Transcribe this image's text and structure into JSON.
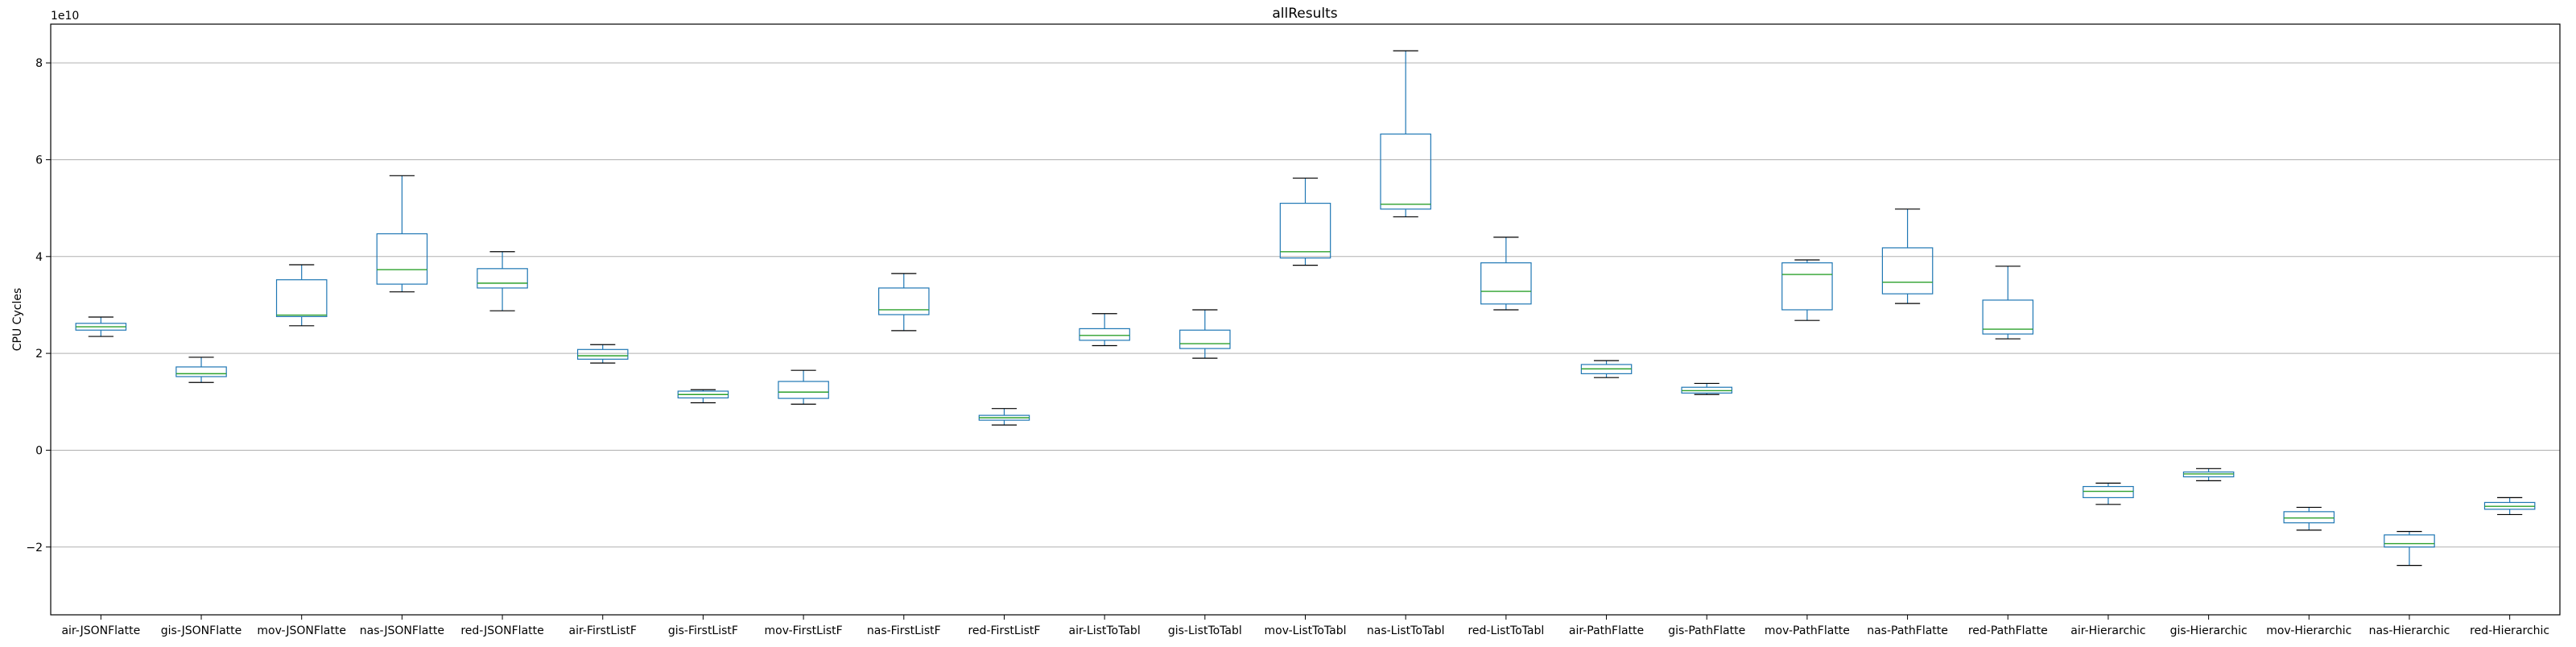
{
  "chart_data": {
    "type": "box",
    "title": "allResults",
    "xlabel": "",
    "ylabel": "CPU Cycles",
    "y_offset_text": "1e10",
    "y_scale": 10000000000,
    "ylim": [
      -3.4,
      8.8
    ],
    "yticks": [
      -2,
      0,
      2,
      4,
      6,
      8
    ],
    "y_tick_labels": [
      "−2",
      "0",
      "2",
      "4",
      "6",
      "8"
    ],
    "grid": "horizontal",
    "colors": {
      "box": "#1f77b4",
      "median": "#2ca02c",
      "whisker": "#1f77b4",
      "cap": "#000000",
      "grid": "#b0b0b0"
    },
    "categories": [
      "air-JSONFlatte",
      "gis-JSONFlatte",
      "mov-JSONFlatte",
      "nas-JSONFlatte",
      "red-JSONFlatte",
      "air-FirstListF",
      "gis-FirstListF",
      "mov-FirstListF",
      "nas-FirstListF",
      "red-FirstListF",
      "air-ListToTabl",
      "gis-ListToTabl",
      "mov-ListToTabl",
      "nas-ListToTabl",
      "red-ListToTabl",
      "air-PathFlatte",
      "gis-PathFlatte",
      "mov-PathFlatte",
      "nas-PathFlatte",
      "red-PathFlatte",
      "air-Hierarchic",
      "gis-Hierarchic",
      "mov-Hierarchic",
      "nas-Hierarchic",
      "red-Hierarchic"
    ],
    "boxes": [
      {
        "whislo": 2.35,
        "q1": 2.48,
        "med": 2.55,
        "q3": 2.62,
        "whishi": 2.75
      },
      {
        "whislo": 1.4,
        "q1": 1.52,
        "med": 1.58,
        "q3": 1.72,
        "whishi": 1.92
      },
      {
        "whislo": 2.57,
        "q1": 2.76,
        "med": 2.79,
        "q3": 3.52,
        "whishi": 3.83
      },
      {
        "whislo": 3.27,
        "q1": 3.43,
        "med": 3.73,
        "q3": 4.47,
        "whishi": 5.67
      },
      {
        "whislo": 2.88,
        "q1": 3.35,
        "med": 3.45,
        "q3": 3.75,
        "whishi": 4.1
      },
      {
        "whislo": 1.8,
        "q1": 1.88,
        "med": 1.95,
        "q3": 2.08,
        "whishi": 2.18
      },
      {
        "whislo": 0.98,
        "q1": 1.08,
        "med": 1.15,
        "q3": 1.22,
        "whishi": 1.25
      },
      {
        "whislo": 0.95,
        "q1": 1.07,
        "med": 1.2,
        "q3": 1.42,
        "whishi": 1.65
      },
      {
        "whislo": 2.47,
        "q1": 2.8,
        "med": 2.9,
        "q3": 3.35,
        "whishi": 3.65
      },
      {
        "whislo": 0.52,
        "q1": 0.62,
        "med": 0.67,
        "q3": 0.72,
        "whishi": 0.86
      },
      {
        "whislo": 2.16,
        "q1": 2.27,
        "med": 2.37,
        "q3": 2.51,
        "whishi": 2.82
      },
      {
        "whislo": 1.9,
        "q1": 2.1,
        "med": 2.2,
        "q3": 2.48,
        "whishi": 2.9
      },
      {
        "whislo": 3.82,
        "q1": 3.97,
        "med": 4.1,
        "q3": 5.1,
        "whishi": 5.62
      },
      {
        "whislo": 4.82,
        "q1": 4.98,
        "med": 5.08,
        "q3": 6.53,
        "whishi": 8.25
      },
      {
        "whislo": 2.9,
        "q1": 3.02,
        "med": 3.28,
        "q3": 3.87,
        "whishi": 4.4
      },
      {
        "whislo": 1.5,
        "q1": 1.58,
        "med": 1.68,
        "q3": 1.77,
        "whishi": 1.85
      },
      {
        "whislo": 1.15,
        "q1": 1.18,
        "med": 1.23,
        "q3": 1.3,
        "whishi": 1.38
      },
      {
        "whislo": 2.68,
        "q1": 2.9,
        "med": 3.63,
        "q3": 3.87,
        "whishi": 3.93
      },
      {
        "whislo": 3.03,
        "q1": 3.23,
        "med": 3.47,
        "q3": 4.18,
        "whishi": 4.98
      },
      {
        "whislo": 2.3,
        "q1": 2.4,
        "med": 2.5,
        "q3": 3.1,
        "whishi": 3.8
      },
      {
        "whislo": -1.12,
        "q1": -0.98,
        "med": -0.85,
        "q3": -0.75,
        "whishi": -0.68
      },
      {
        "whislo": -0.63,
        "q1": -0.55,
        "med": -0.49,
        "q3": -0.45,
        "whishi": -0.38
      },
      {
        "whislo": -1.65,
        "q1": -1.5,
        "med": -1.4,
        "q3": -1.27,
        "whishi": -1.18
      },
      {
        "whislo": -2.38,
        "q1": -2.0,
        "med": -1.93,
        "q3": -1.75,
        "whishi": -1.68
      },
      {
        "whislo": -1.33,
        "q1": -1.22,
        "med": -1.16,
        "q3": -1.08,
        "whishi": -0.98
      }
    ]
  }
}
